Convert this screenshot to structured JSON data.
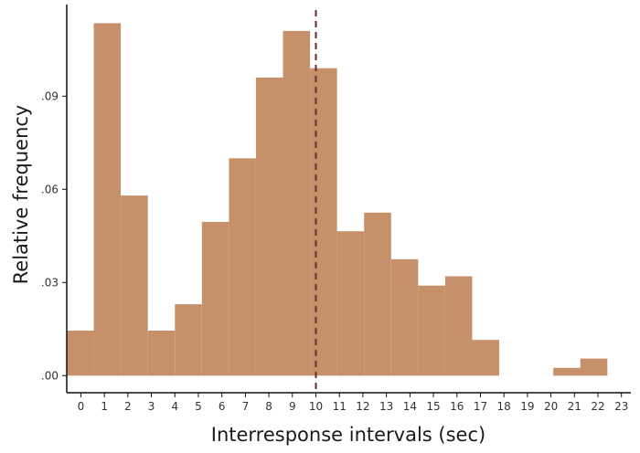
{
  "chart_data": {
    "type": "bar",
    "subtype": "histogram",
    "xlabel": "Interresponse intervals (sec)",
    "ylabel": "Relative frequency",
    "x_ticks": [
      "0",
      "1",
      "2",
      "3",
      "4",
      "5",
      "6",
      "7",
      "8",
      "9",
      "10",
      "11",
      "12",
      "13",
      "14",
      "15",
      "16",
      "17",
      "18",
      "19",
      "20",
      "21",
      "22",
      "23"
    ],
    "y_ticks": [
      {
        "value": 0.0,
        "label": ".00"
      },
      {
        "value": 0.03,
        "label": ".03"
      },
      {
        "value": 0.06,
        "label": ".06"
      },
      {
        "value": 0.09,
        "label": ".09"
      }
    ],
    "xlim": [
      -0.6,
      23.4
    ],
    "ylim": [
      -0.0055,
      0.1195
    ],
    "bin_width": 1.15,
    "bins": [
      {
        "start": -0.6,
        "value": 0.0145
      },
      {
        "start": 0.55,
        "value": 0.1135
      },
      {
        "start": 1.7,
        "value": 0.058
      },
      {
        "start": 2.85,
        "value": 0.0145
      },
      {
        "start": 4.0,
        "value": 0.023
      },
      {
        "start": 5.15,
        "value": 0.0495
      },
      {
        "start": 6.3,
        "value": 0.07
      },
      {
        "start": 7.45,
        "value": 0.096
      },
      {
        "start": 8.6,
        "value": 0.111
      },
      {
        "start": 9.75,
        "value": 0.099
      },
      {
        "start": 10.9,
        "value": 0.0465
      },
      {
        "start": 12.05,
        "value": 0.0525
      },
      {
        "start": 13.2,
        "value": 0.0375
      },
      {
        "start": 14.35,
        "value": 0.029
      },
      {
        "start": 15.5,
        "value": 0.032
      },
      {
        "start": 16.65,
        "value": 0.0115
      },
      {
        "start": 17.8,
        "value": 0.0
      },
      {
        "start": 18.95,
        "value": 0.0
      },
      {
        "start": 20.1,
        "value": 0.0025
      },
      {
        "start": 21.25,
        "value": 0.0055
      }
    ],
    "reference_line": {
      "x": 10,
      "style": "dashed",
      "color": "#6b2a3a"
    },
    "bar_color": "#c6916a",
    "grid": false,
    "legend": "none"
  }
}
